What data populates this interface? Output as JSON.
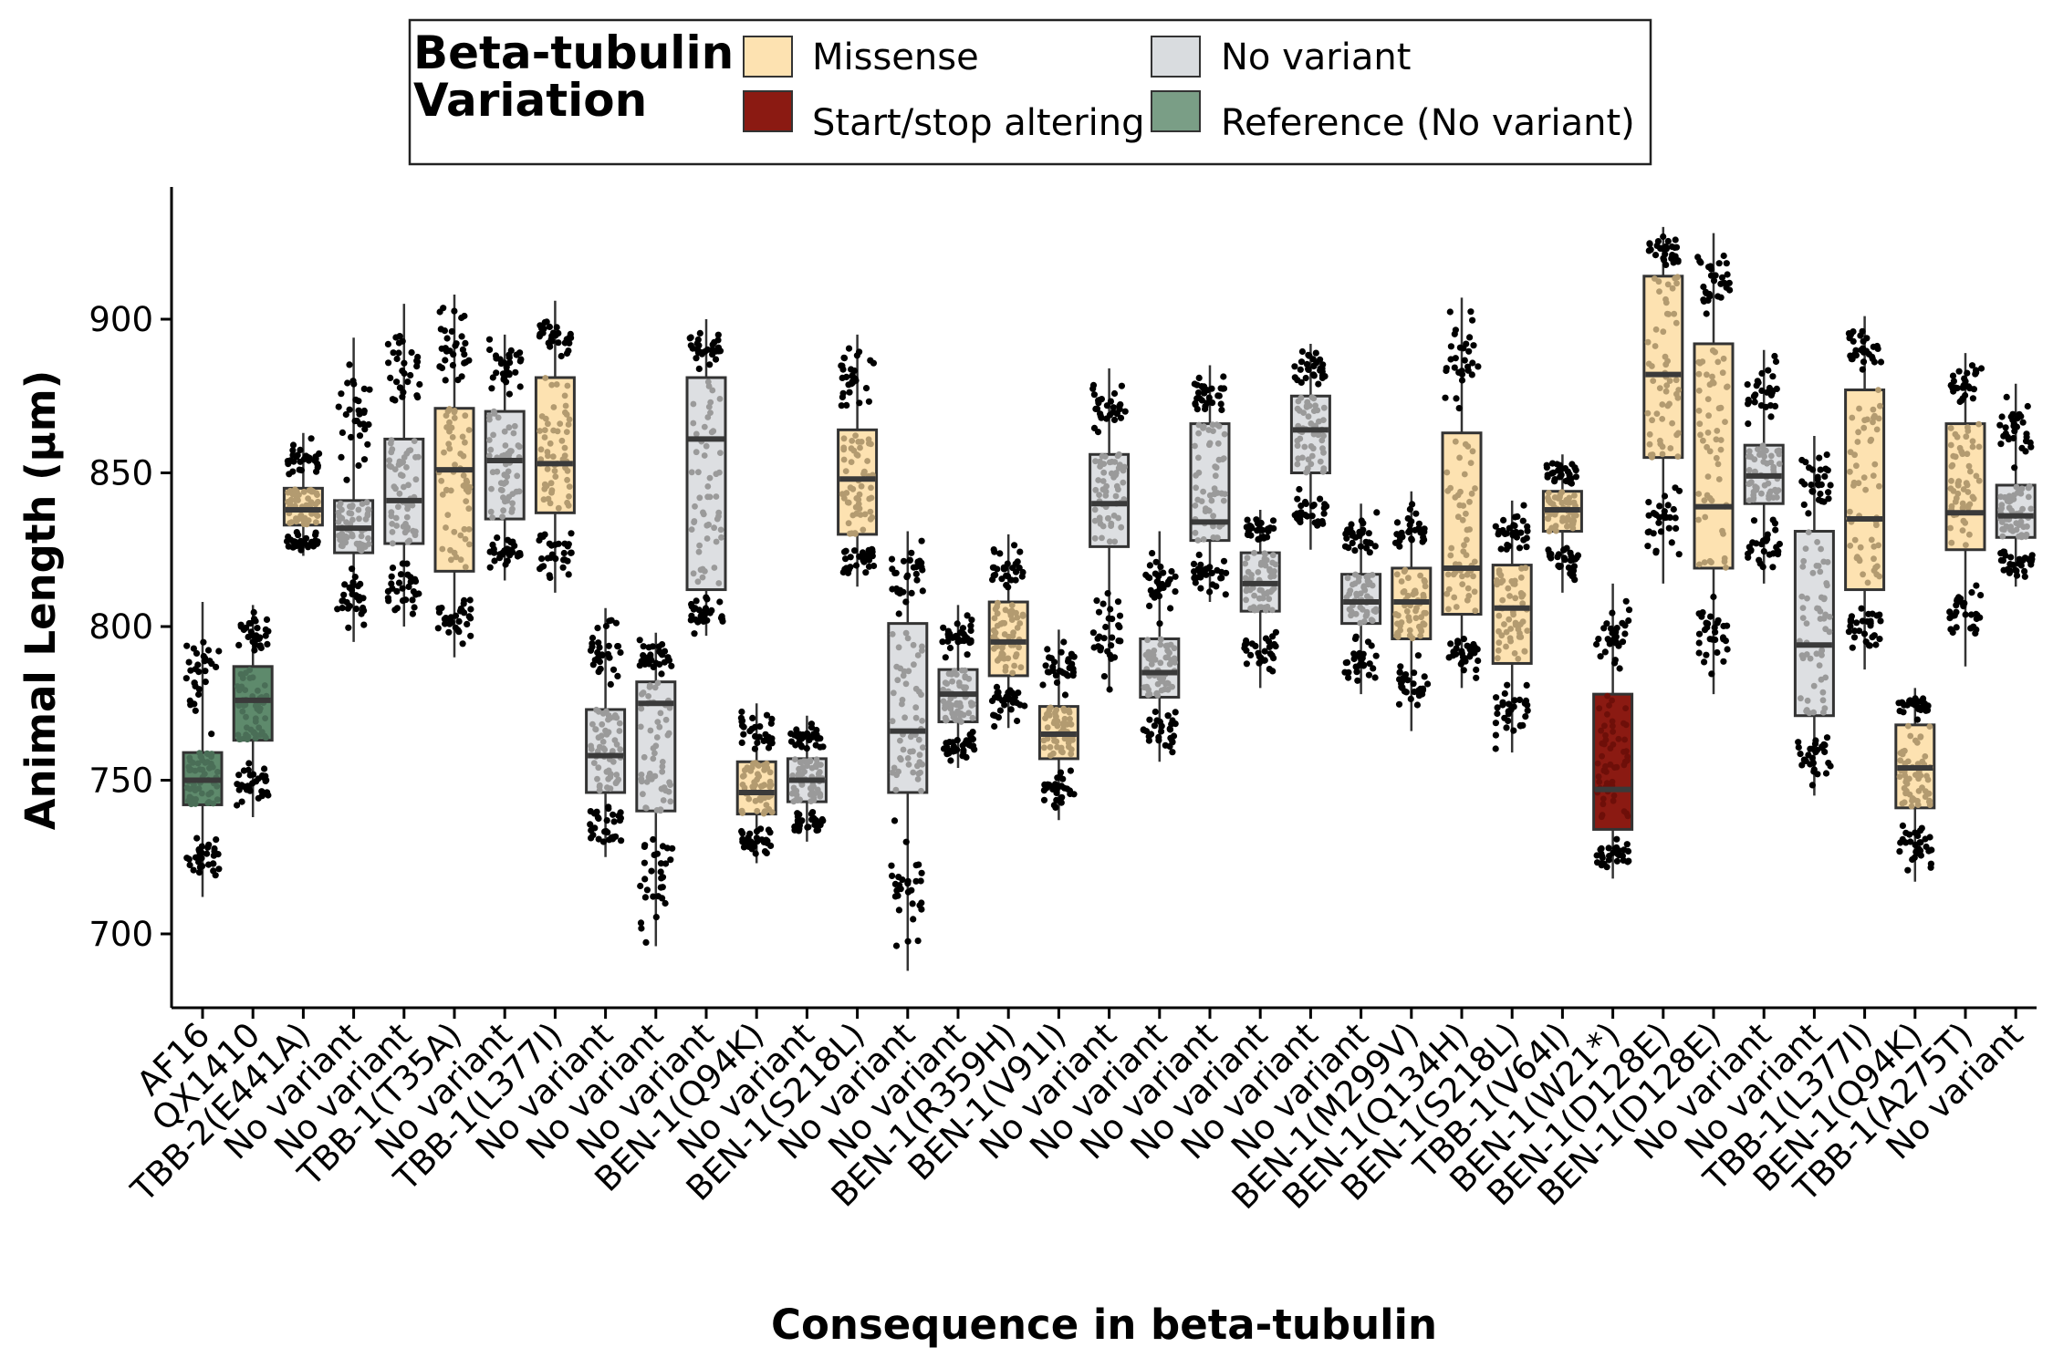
{
  "chart_data": {
    "type": "boxplot",
    "ylabel": "Animal Length (µm)",
    "xlabel": "Consequence in beta-tubulin",
    "ylim": [
      675,
      945
    ],
    "yticks": [
      700,
      750,
      800,
      850,
      900
    ],
    "legend": {
      "title_line1": "Beta-tubulin",
      "title_line2": "Variation",
      "position": "top",
      "items": [
        {
          "key": "missense",
          "label": "Missense",
          "color": "#fde2b1"
        },
        {
          "key": "startstop",
          "label": "Start/stop altering",
          "color": "#8b1a12"
        },
        {
          "key": "novariant",
          "label": "No variant",
          "color": "#d9dcdf"
        },
        {
          "key": "reference",
          "label": "Reference (No variant)",
          "color": "#7a9e86"
        }
      ]
    },
    "colors": {
      "missense": {
        "box": "#fde2b1",
        "point": "#b39b70"
      },
      "startstop": {
        "box": "#8b1a12",
        "point": "#6e0f09"
      },
      "novariant": {
        "box": "#dddfe2",
        "point": "#9a9a9a"
      },
      "reference": {
        "box": "#5e8a6c",
        "point": "#4a6e57"
      },
      "outer_point": "#000000",
      "median": "#3a3a3a",
      "box_border": "#333333"
    },
    "boxes": [
      {
        "label": "AF16",
        "type": "reference",
        "q1": 742,
        "median": 750,
        "q3": 759,
        "min": 712,
        "max": 808
      },
      {
        "label": "QX1410",
        "type": "reference",
        "q1": 763,
        "median": 776,
        "q3": 787,
        "min": 738,
        "max": 807
      },
      {
        "label": "TBB-2(E441A)",
        "type": "missense",
        "q1": 833,
        "median": 838,
        "q3": 845,
        "min": 823,
        "max": 863
      },
      {
        "label": "No variant",
        "type": "novariant",
        "q1": 824,
        "median": 832,
        "q3": 841,
        "min": 795,
        "max": 894
      },
      {
        "label": "No variant",
        "type": "novariant",
        "q1": 827,
        "median": 841,
        "q3": 861,
        "min": 800,
        "max": 905
      },
      {
        "label": "TBB-1(T35A)",
        "type": "missense",
        "q1": 818,
        "median": 851,
        "q3": 871,
        "min": 790,
        "max": 908
      },
      {
        "label": "No variant",
        "type": "novariant",
        "q1": 835,
        "median": 854,
        "q3": 870,
        "min": 815,
        "max": 895
      },
      {
        "label": "TBB-1(L377I)",
        "type": "missense",
        "q1": 837,
        "median": 853,
        "q3": 881,
        "min": 811,
        "max": 906
      },
      {
        "label": "No variant",
        "type": "novariant",
        "q1": 746,
        "median": 758,
        "q3": 773,
        "min": 725,
        "max": 806
      },
      {
        "label": "No variant",
        "type": "novariant",
        "q1": 740,
        "median": 775,
        "q3": 782,
        "min": 696,
        "max": 798
      },
      {
        "label": "No variant",
        "type": "novariant",
        "q1": 812,
        "median": 861,
        "q3": 881,
        "min": 797,
        "max": 900
      },
      {
        "label": "BEN-1(Q94K)",
        "type": "missense",
        "q1": 739,
        "median": 746,
        "q3": 756,
        "min": 723,
        "max": 775
      },
      {
        "label": "No variant",
        "type": "novariant",
        "q1": 743,
        "median": 750,
        "q3": 757,
        "min": 730,
        "max": 771
      },
      {
        "label": "BEN-1(S218L)",
        "type": "missense",
        "q1": 830,
        "median": 848,
        "q3": 864,
        "min": 813,
        "max": 895
      },
      {
        "label": "No variant",
        "type": "novariant",
        "q1": 746,
        "median": 766,
        "q3": 801,
        "min": 688,
        "max": 831
      },
      {
        "label": "No variant",
        "type": "novariant",
        "q1": 769,
        "median": 778,
        "q3": 786,
        "min": 754,
        "max": 807
      },
      {
        "label": "BEN-1(R359H)",
        "type": "missense",
        "q1": 784,
        "median": 795,
        "q3": 808,
        "min": 767,
        "max": 830
      },
      {
        "label": "BEN-1(V91I)",
        "type": "missense",
        "q1": 757,
        "median": 765,
        "q3": 774,
        "min": 737,
        "max": 799
      },
      {
        "label": "No variant",
        "type": "novariant",
        "q1": 826,
        "median": 840,
        "q3": 856,
        "min": 779,
        "max": 884
      },
      {
        "label": "No variant",
        "type": "novariant",
        "q1": 777,
        "median": 785,
        "q3": 796,
        "min": 756,
        "max": 831
      },
      {
        "label": "No variant",
        "type": "novariant",
        "q1": 828,
        "median": 834,
        "q3": 866,
        "min": 808,
        "max": 885
      },
      {
        "label": "No variant",
        "type": "novariant",
        "q1": 805,
        "median": 814,
        "q3": 824,
        "min": 780,
        "max": 838
      },
      {
        "label": "No variant",
        "type": "novariant",
        "q1": 850,
        "median": 864,
        "q3": 875,
        "min": 825,
        "max": 892
      },
      {
        "label": "No variant",
        "type": "novariant",
        "q1": 801,
        "median": 808,
        "q3": 817,
        "min": 778,
        "max": 840
      },
      {
        "label": "BEN-1(M299V)",
        "type": "missense",
        "q1": 796,
        "median": 808,
        "q3": 819,
        "min": 766,
        "max": 844
      },
      {
        "label": "BEN-1(Q134H)",
        "type": "missense",
        "q1": 804,
        "median": 819,
        "q3": 863,
        "min": 780,
        "max": 907
      },
      {
        "label": "BEN-1(S218L)",
        "type": "missense",
        "q1": 788,
        "median": 806,
        "q3": 820,
        "min": 759,
        "max": 841
      },
      {
        "label": "TBB-1(V64I)",
        "type": "missense",
        "q1": 831,
        "median": 838,
        "q3": 844,
        "min": 811,
        "max": 856
      },
      {
        "label": "BEN-1(W21*)",
        "type": "startstop",
        "q1": 734,
        "median": 747,
        "q3": 778,
        "min": 718,
        "max": 814
      },
      {
        "label": "BEN-1(D128E)",
        "type": "missense",
        "q1": 855,
        "median": 882,
        "q3": 914,
        "min": 814,
        "max": 930
      },
      {
        "label": "BEN-1(D128E)",
        "type": "missense",
        "q1": 819,
        "median": 839,
        "q3": 892,
        "min": 778,
        "max": 928
      },
      {
        "label": "No variant",
        "type": "novariant",
        "q1": 840,
        "median": 849,
        "q3": 859,
        "min": 814,
        "max": 890
      },
      {
        "label": "No variant",
        "type": "novariant",
        "q1": 771,
        "median": 794,
        "q3": 831,
        "min": 745,
        "max": 862
      },
      {
        "label": "TBB-1(L377I)",
        "type": "missense",
        "q1": 812,
        "median": 835,
        "q3": 877,
        "min": 786,
        "max": 901
      },
      {
        "label": "BEN-1(Q94K)",
        "type": "missense",
        "q1": 741,
        "median": 754,
        "q3": 768,
        "min": 717,
        "max": 780
      },
      {
        "label": "TBB-1(A275T)",
        "type": "missense",
        "q1": 825,
        "median": 837,
        "q3": 866,
        "min": 787,
        "max": 889
      },
      {
        "label": "No variant",
        "type": "novariant",
        "q1": 829,
        "median": 836,
        "q3": 846,
        "min": 813,
        "max": 879
      }
    ]
  }
}
